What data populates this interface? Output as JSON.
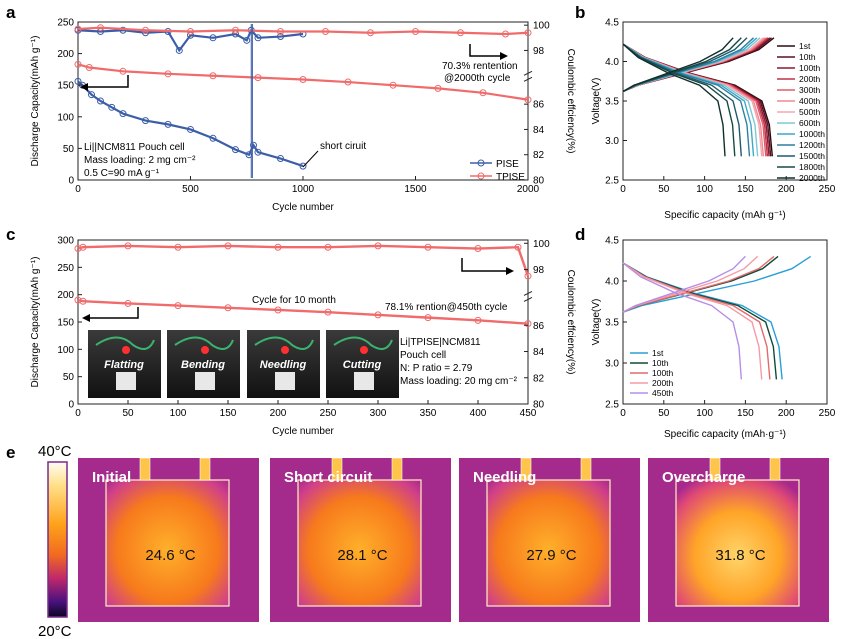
{
  "panel_labels": {
    "a": "a",
    "b": "b",
    "c": "c",
    "d": "d",
    "e": "e"
  },
  "colors": {
    "pise": "#3c5ea8",
    "tpise": "#f06b6b",
    "axis": "#222222",
    "cycle_colors_b": [
      "#2b0b12",
      "#5a1022",
      "#8a1a2e",
      "#c43049",
      "#e05b6b",
      "#f08a8f",
      "#f2a8b0",
      "#7fc7d8",
      "#3fa7c8",
      "#2f7f9e",
      "#1f5a6a",
      "#164a46",
      "#0f2f2c"
    ],
    "cycle_colors_d": [
      "#2a9fd6",
      "#0e4a3a",
      "#e36a6a",
      "#f59aa5",
      "#b78ee6"
    ]
  },
  "chart_data": [
    {
      "id": "a",
      "type": "scatter",
      "xlabel": "Cycle number",
      "ylabel": "Discharge Capacity(mAh g⁻¹)",
      "y2label": "Coulombic effciency(%)",
      "xlim": [
        0,
        2000
      ],
      "ylim": [
        0,
        250
      ],
      "y2lim": [
        80,
        100
      ],
      "xticks": [
        "0",
        "500",
        "1000",
        "1500",
        "2000"
      ],
      "yticks": [
        "0",
        "50",
        "100",
        "150",
        "200",
        "250"
      ],
      "y2ticks": [
        "80",
        "82",
        "84",
        "86",
        "98",
        "100"
      ],
      "y2_break_note": "axis break between 86 and 98",
      "series": [
        {
          "name": "PISE",
          "kind": "capacity",
          "x": [
            0,
            20,
            60,
            100,
            150,
            200,
            300,
            400,
            500,
            600,
            700,
            760,
            780,
            800,
            900,
            1000
          ],
          "values": [
            156,
            150,
            135,
            125,
            115,
            105,
            94,
            88,
            80,
            66,
            48,
            40,
            55,
            44,
            34,
            22
          ]
        },
        {
          "name": "TPISE",
          "kind": "capacity",
          "x": [
            0,
            50,
            200,
            400,
            600,
            800,
            1000,
            1200,
            1400,
            1600,
            1800,
            2000
          ],
          "values": [
            183,
            178,
            172,
            168,
            165,
            162,
            159,
            155,
            150,
            145,
            138,
            127
          ]
        },
        {
          "name": "PISE",
          "kind": "ce",
          "x": [
            0,
            100,
            200,
            300,
            400,
            450,
            500,
            600,
            700,
            750,
            770,
            800,
            900,
            1000
          ],
          "values": [
            99.6,
            99.5,
            99.6,
            99.4,
            99.5,
            98.0,
            99.2,
            99.0,
            99.3,
            98.8,
            99.6,
            99.0,
            99.1,
            99.3
          ]
        },
        {
          "name": "TPISE",
          "kind": "ce",
          "x": [
            0,
            100,
            300,
            500,
            700,
            900,
            1100,
            1300,
            1500,
            1700,
            1900,
            2000
          ],
          "values": [
            99.7,
            99.8,
            99.6,
            99.5,
            99.6,
            99.5,
            99.5,
            99.4,
            99.5,
            99.4,
            99.3,
            99.4
          ]
        }
      ],
      "legend": [
        "PISE",
        "TPISE"
      ],
      "annotations": {
        "retention": "70.3% rentention",
        "retention2": "@2000th cycle",
        "short": "short ciruit",
        "cell1": "Li||NCM811 Pouch cell",
        "cell2": "Mass loading: 2 mg cm⁻²",
        "cell3": "0.5 C=90 mA g⁻¹"
      }
    },
    {
      "id": "b",
      "type": "line",
      "xlabel": "Specific capacity (mAh g⁻¹)",
      "ylabel": "Voltage(V)",
      "xlim": [
        0,
        250
      ],
      "ylim": [
        2.5,
        4.5
      ],
      "xticks": [
        "0",
        "50",
        "100",
        "150",
        "200",
        "250"
      ],
      "yticks": [
        "2.5",
        "3.0",
        "3.5",
        "4.0",
        "4.5"
      ],
      "legend": [
        "1st",
        "10th",
        "100th",
        "200th",
        "300th",
        "400th",
        "500th",
        "600th",
        "1000th",
        "1200th",
        "1500th",
        "1800th",
        "2000th"
      ],
      "charge_end_capacity": [
        185,
        182,
        180,
        178,
        176,
        174,
        172,
        168,
        164,
        160,
        152,
        145,
        135
      ],
      "discharge_end_capacity": [
        183,
        181,
        179,
        177,
        175,
        172,
        170,
        165,
        160,
        155,
        145,
        137,
        125
      ]
    },
    {
      "id": "c",
      "type": "scatter",
      "xlabel": "Cycle number",
      "ylabel": "Discharge Capacity(mAh g⁻¹)",
      "y2label": "Coulombic effciency(%)",
      "xlim": [
        0,
        450
      ],
      "ylim": [
        0,
        300
      ],
      "y2lim": [
        80,
        100
      ],
      "xticks": [
        "0",
        "50",
        "100",
        "150",
        "200",
        "250",
        "300",
        "350",
        "400",
        "450"
      ],
      "yticks": [
        "0",
        "50",
        "100",
        "150",
        "200",
        "250",
        "300"
      ],
      "y2ticks": [
        "80",
        "82",
        "84",
        "86",
        "98",
        "100"
      ],
      "series": [
        {
          "name": "TPISE",
          "kind": "capacity",
          "x": [
            0,
            5,
            50,
            100,
            150,
            200,
            250,
            300,
            350,
            400,
            450
          ],
          "values": [
            190,
            188,
            184,
            180,
            176,
            172,
            168,
            163,
            158,
            153,
            147
          ]
        },
        {
          "name": "TPISE",
          "kind": "ce",
          "x": [
            0,
            5,
            50,
            100,
            150,
            200,
            250,
            300,
            350,
            400,
            440,
            450
          ],
          "values": [
            99.6,
            99.7,
            99.8,
            99.7,
            99.8,
            99.7,
            99.7,
            99.8,
            99.7,
            99.6,
            99.7,
            97.5
          ]
        }
      ],
      "annotations": {
        "month": "Cycle for 10 month",
        "retention": "78.1% rention@450th cycle",
        "cell1": "Li|TPISE|NCM811",
        "cell2": "Pouch cell",
        "cell3": "N: P ratio = 2.79",
        "cell4": "Mass loading: 20 mg cm⁻²"
      },
      "photos": [
        "Flatting",
        "Bending",
        "Needling",
        "Cutting"
      ]
    },
    {
      "id": "d",
      "type": "line",
      "xlabel": "Specific capacity (mAh·g⁻¹)",
      "ylabel": "Voltage(V)",
      "xlim": [
        0,
        250
      ],
      "ylim": [
        2.5,
        4.5
      ],
      "xticks": [
        "0",
        "50",
        "100",
        "150",
        "200",
        "250"
      ],
      "yticks": [
        "2.5",
        "3.0",
        "3.5",
        "4.0",
        "4.5"
      ],
      "legend": [
        "1st",
        "10th",
        "100th",
        "200th",
        "450th"
      ],
      "charge_end_capacity": [
        230,
        190,
        185,
        165,
        150
      ],
      "discharge_end_capacity": [
        195,
        188,
        180,
        170,
        145
      ]
    }
  ],
  "panel_e": {
    "scale_max": "40°C",
    "scale_min": "20°C",
    "images": [
      {
        "label": "Initial",
        "temp": "24.6 °C"
      },
      {
        "label": "Short circuit",
        "temp": "28.1 °C"
      },
      {
        "label": "Needling",
        "temp": "27.9 °C"
      },
      {
        "label": "Overcharge",
        "temp": "31.8 °C"
      }
    ]
  }
}
